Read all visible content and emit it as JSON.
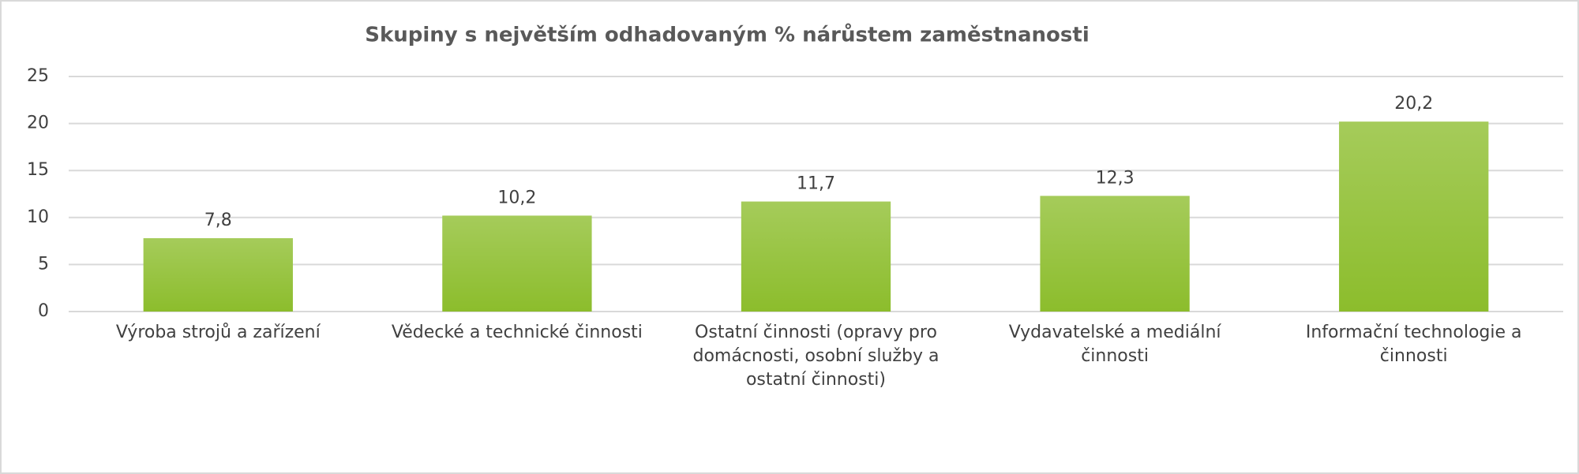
{
  "chart_data": {
    "type": "bar",
    "title": "Skupiny s největším odhadovaným % nárůstem zaměstnanosti",
    "categories": [
      "Výroba strojů a zařízení",
      "Vědecké a technické činnosti",
      "Ostatní činnosti (opravy pro domácnosti, osobní služby a ostatní činnosti)",
      "Vydavatelské a mediální činnosti",
      "Informační technologie a činnosti"
    ],
    "values": [
      7.8,
      10.2,
      11.7,
      12.3,
      20.2
    ],
    "value_labels": [
      "7,8",
      "10,2",
      "11,7",
      "12,3",
      "20,2"
    ],
    "color": "#8cbd2c",
    "ylim": [
      0,
      25
    ],
    "yticks": [
      0,
      5,
      10,
      15,
      20,
      25
    ],
    "grid": true
  }
}
